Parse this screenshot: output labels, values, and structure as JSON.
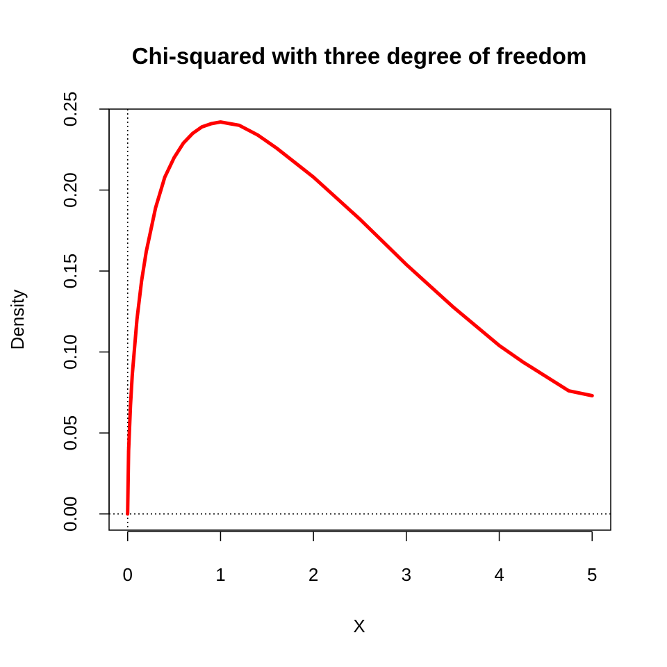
{
  "chart_data": {
    "type": "line",
    "title": "Chi-squared with three degree of freedom",
    "xlabel": "X",
    "ylabel": "Density",
    "xlim": [
      -0.2,
      5.2
    ],
    "ylim": [
      -0.01,
      0.25
    ],
    "x_ticks": [
      0,
      1,
      2,
      3,
      4,
      5
    ],
    "x_tick_labels": [
      "0",
      "1",
      "2",
      "3",
      "4",
      "5"
    ],
    "y_ticks": [
      0.0,
      0.05,
      0.1,
      0.15,
      0.2,
      0.25
    ],
    "y_tick_labels": [
      "0.00",
      "0.05",
      "0.10",
      "0.15",
      "0.20",
      "0.25"
    ],
    "grid": false,
    "reference_lines": [
      {
        "orientation": "vertical",
        "value": 0,
        "style": "dotted"
      },
      {
        "orientation": "horizontal",
        "value": 0,
        "style": "dotted"
      }
    ],
    "series": [
      {
        "color": "#ff0000",
        "x": [
          0,
          0.01,
          0.03,
          0.05,
          0.1,
          0.15,
          0.2,
          0.3,
          0.4,
          0.5,
          0.6,
          0.7,
          0.8,
          0.9,
          1.0,
          1.1,
          1.2,
          1.4,
          1.6,
          1.8,
          2.0,
          2.25,
          2.5,
          2.75,
          3.0,
          3.25,
          3.5,
          3.75,
          4.0,
          4.25,
          4.5,
          4.75,
          5.0
        ],
        "y": [
          0,
          0.039,
          0.067,
          0.086,
          0.12,
          0.144,
          0.162,
          0.189,
          0.208,
          0.22,
          0.229,
          0.235,
          0.239,
          0.241,
          0.242,
          0.241,
          0.24,
          0.234,
          0.226,
          0.217,
          0.208,
          0.195,
          0.182,
          0.168,
          0.154,
          0.141,
          0.128,
          0.116,
          0.104,
          0.094,
          0.085,
          0.076,
          0.073
        ]
      }
    ]
  }
}
